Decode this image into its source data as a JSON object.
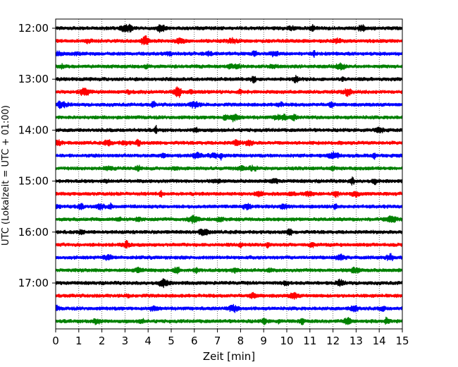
{
  "chart_data": {
    "type": "line",
    "title": "",
    "xlabel": "Zeit  [min]",
    "ylabel": "UTC (Lokalzeit = UTC + 01:00)",
    "xlim": [
      0,
      15
    ],
    "x_ticks": [
      "0",
      "1",
      "2",
      "3",
      "4",
      "5",
      "6",
      "7",
      "8",
      "9",
      "10",
      "11",
      "12",
      "13",
      "14",
      "15"
    ],
    "y_ticks": [
      {
        "label": "12:00",
        "trace_index": 0
      },
      {
        "label": "13:00",
        "trace_index": 4
      },
      {
        "label": "14:00",
        "trace_index": 8
      },
      {
        "label": "15:00",
        "trace_index": 12
      },
      {
        "label": "16:00",
        "trace_index": 16
      },
      {
        "label": "17:00",
        "trace_index": 20
      }
    ],
    "grid": "vertical dotted at each minute",
    "trace_colors": [
      "#000000",
      "#ff0000",
      "#0000ff",
      "#008000"
    ],
    "traces": [
      {
        "start_utc": "12:00"
      },
      {
        "start_utc": "12:15"
      },
      {
        "start_utc": "12:30"
      },
      {
        "start_utc": "12:45"
      },
      {
        "start_utc": "13:00"
      },
      {
        "start_utc": "13:15"
      },
      {
        "start_utc": "13:30"
      },
      {
        "start_utc": "13:45"
      },
      {
        "start_utc": "14:00"
      },
      {
        "start_utc": "14:15"
      },
      {
        "start_utc": "14:30"
      },
      {
        "start_utc": "14:45"
      },
      {
        "start_utc": "15:00"
      },
      {
        "start_utc": "15:15"
      },
      {
        "start_utc": "15:30"
      },
      {
        "start_utc": "15:45"
      },
      {
        "start_utc": "16:00"
      },
      {
        "start_utc": "16:15"
      },
      {
        "start_utc": "16:30"
      },
      {
        "start_utc": "16:45"
      },
      {
        "start_utc": "17:00"
      },
      {
        "start_utc": "17:15"
      },
      {
        "start_utc": "17:30"
      },
      {
        "start_utc": "17:45"
      }
    ]
  }
}
